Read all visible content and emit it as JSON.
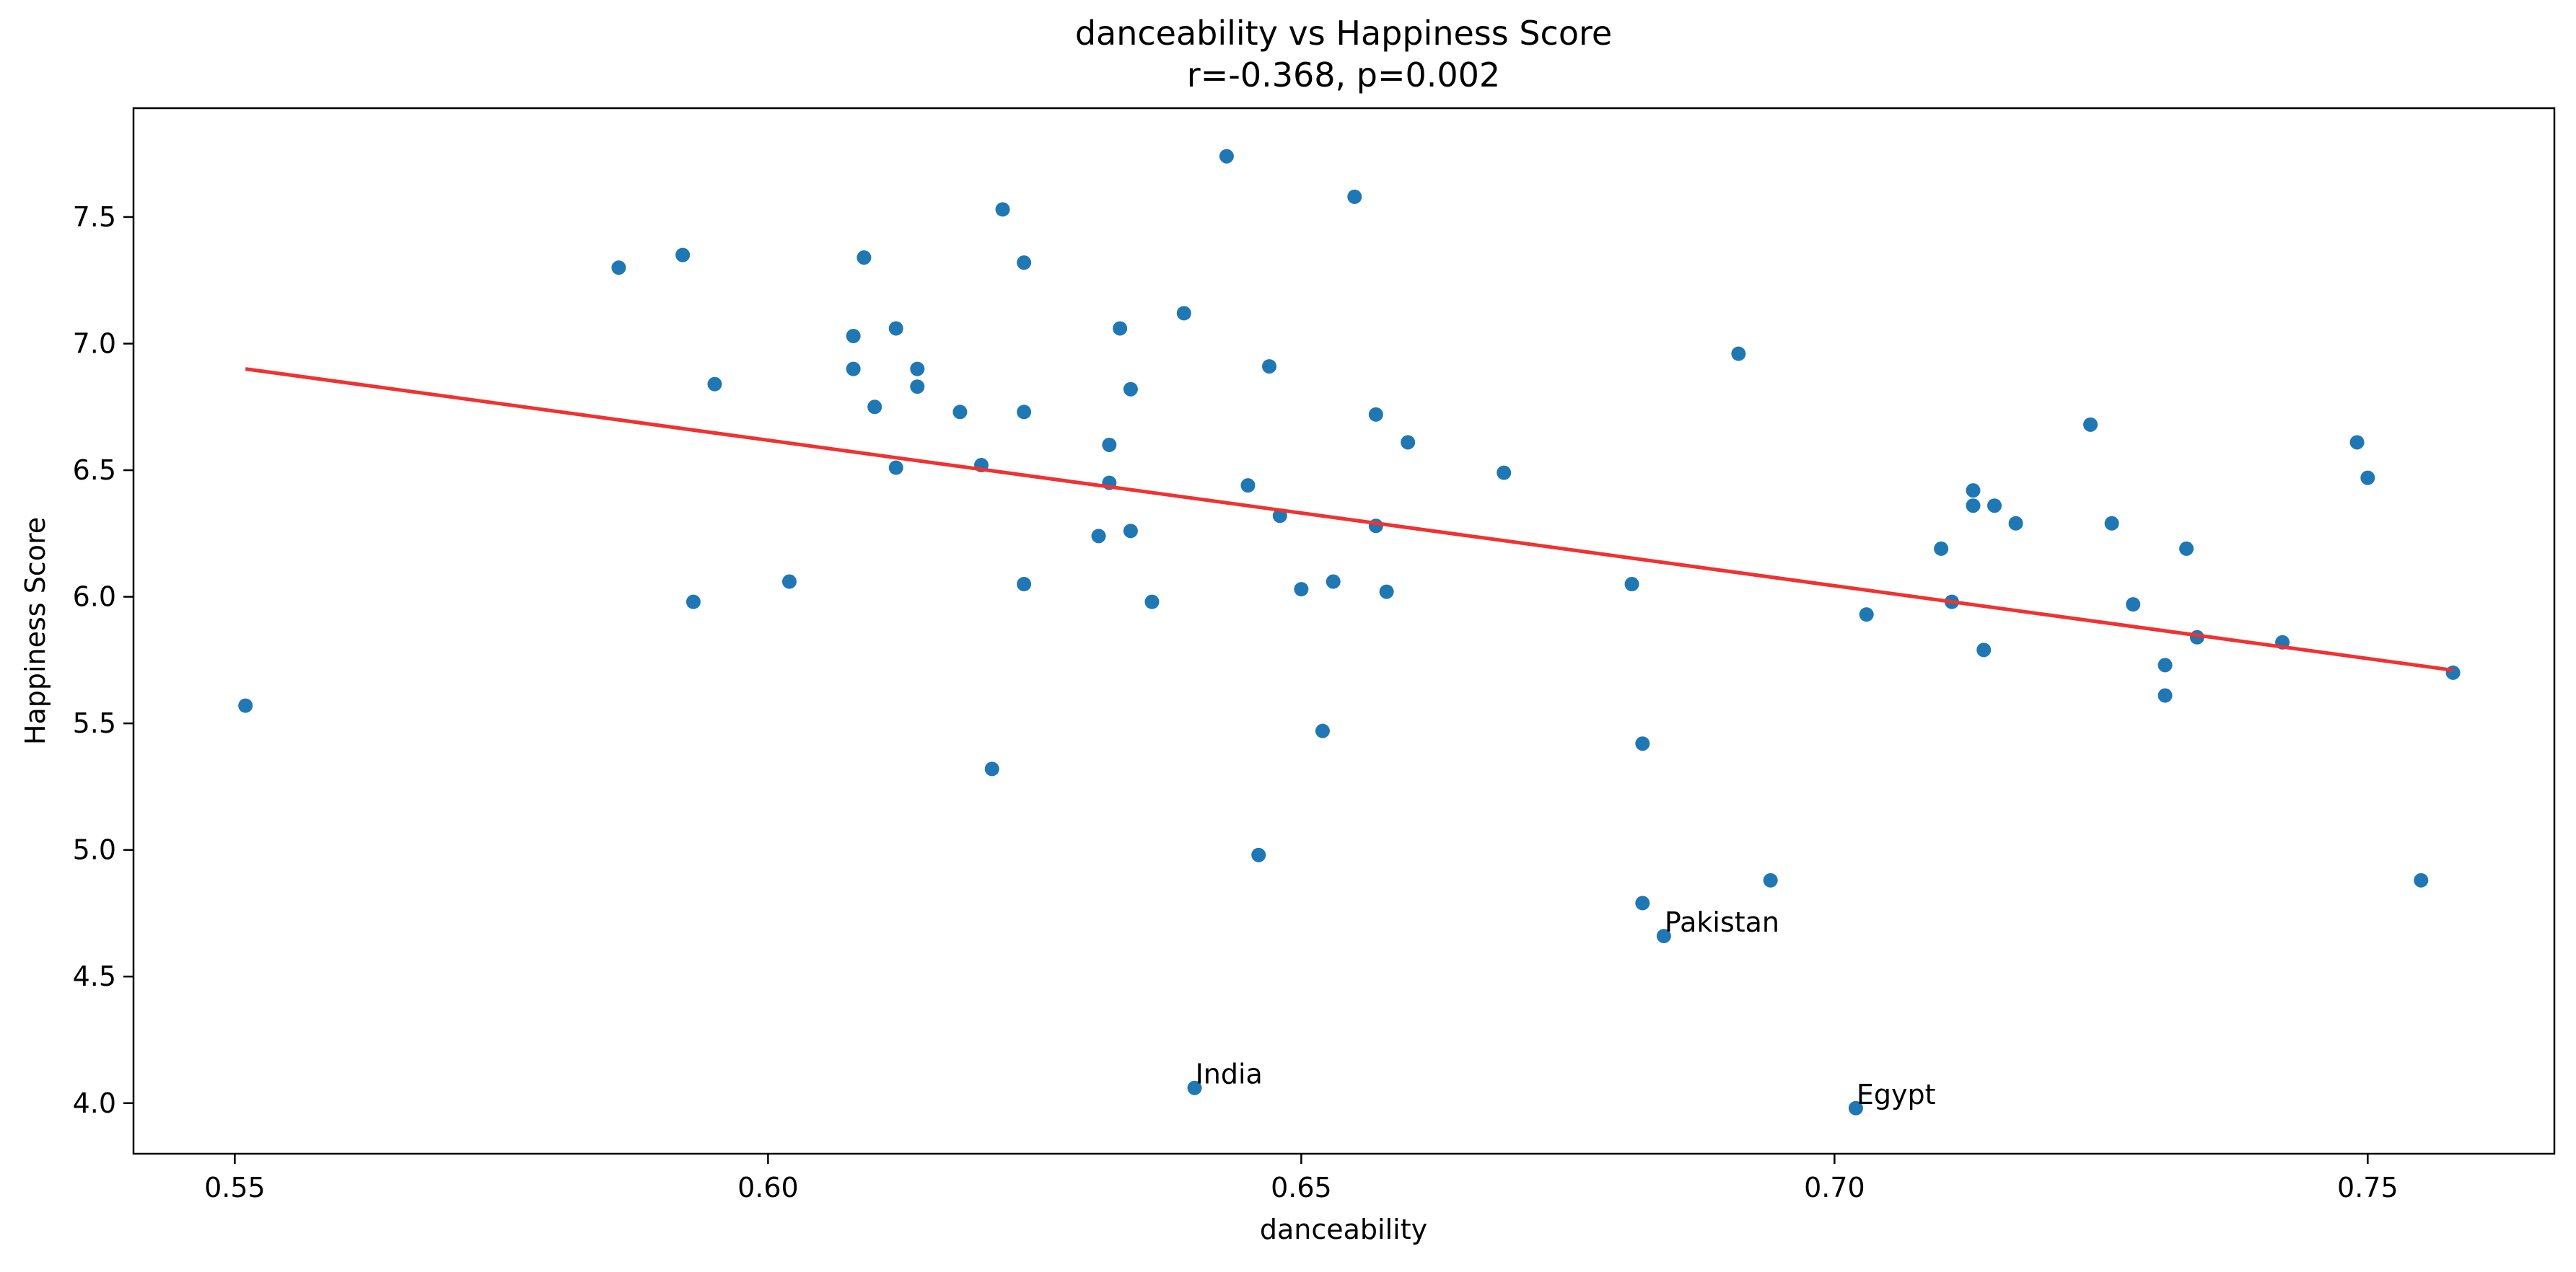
{
  "chart_data": {
    "type": "scatter",
    "title": "danceability vs Happiness Score",
    "subtitle": "r=-0.368, p=0.002",
    "xlabel": "danceability",
    "ylabel": "Happiness Score",
    "xlim": [
      0.5405,
      0.7675
    ],
    "ylim": [
      3.8,
      7.93
    ],
    "xticks": [
      0.55,
      0.6,
      0.65,
      0.7,
      0.75
    ],
    "xtick_labels": [
      "0.55",
      "0.60",
      "0.65",
      "0.70",
      "0.75"
    ],
    "yticks": [
      4.0,
      4.5,
      5.0,
      5.5,
      6.0,
      6.5,
      7.0,
      7.5
    ],
    "ytick_labels": [
      "4.0",
      "4.5",
      "5.0",
      "5.5",
      "6.0",
      "6.5",
      "7.0",
      "7.5"
    ],
    "grid": false,
    "point_color": "#1f77b4",
    "line_color": "#ef3232",
    "points": [
      {
        "x": 0.551,
        "y": 5.57
      },
      {
        "x": 0.586,
        "y": 7.3
      },
      {
        "x": 0.592,
        "y": 7.35
      },
      {
        "x": 0.593,
        "y": 5.98
      },
      {
        "x": 0.595,
        "y": 6.84
      },
      {
        "x": 0.602,
        "y": 6.06
      },
      {
        "x": 0.608,
        "y": 7.03
      },
      {
        "x": 0.608,
        "y": 6.9
      },
      {
        "x": 0.609,
        "y": 7.34
      },
      {
        "x": 0.61,
        "y": 6.75
      },
      {
        "x": 0.612,
        "y": 7.06
      },
      {
        "x": 0.612,
        "y": 6.51
      },
      {
        "x": 0.614,
        "y": 6.83
      },
      {
        "x": 0.614,
        "y": 6.9
      },
      {
        "x": 0.618,
        "y": 6.73
      },
      {
        "x": 0.62,
        "y": 6.52
      },
      {
        "x": 0.621,
        "y": 5.32
      },
      {
        "x": 0.622,
        "y": 7.53
      },
      {
        "x": 0.624,
        "y": 7.32
      },
      {
        "x": 0.624,
        "y": 6.73
      },
      {
        "x": 0.624,
        "y": 6.05
      },
      {
        "x": 0.631,
        "y": 6.24
      },
      {
        "x": 0.632,
        "y": 6.6
      },
      {
        "x": 0.632,
        "y": 6.45
      },
      {
        "x": 0.633,
        "y": 7.06
      },
      {
        "x": 0.634,
        "y": 6.26
      },
      {
        "x": 0.634,
        "y": 6.82
      },
      {
        "x": 0.636,
        "y": 5.98
      },
      {
        "x": 0.639,
        "y": 7.12
      },
      {
        "x": 0.64,
        "y": 4.06,
        "label": "India"
      },
      {
        "x": 0.643,
        "y": 7.74
      },
      {
        "x": 0.645,
        "y": 6.44
      },
      {
        "x": 0.646,
        "y": 4.98
      },
      {
        "x": 0.647,
        "y": 6.91
      },
      {
        "x": 0.648,
        "y": 6.32
      },
      {
        "x": 0.65,
        "y": 6.03
      },
      {
        "x": 0.652,
        "y": 5.47
      },
      {
        "x": 0.653,
        "y": 6.06
      },
      {
        "x": 0.655,
        "y": 7.58
      },
      {
        "x": 0.657,
        "y": 6.72
      },
      {
        "x": 0.657,
        "y": 6.28
      },
      {
        "x": 0.658,
        "y": 6.02
      },
      {
        "x": 0.66,
        "y": 6.61
      },
      {
        "x": 0.669,
        "y": 6.49
      },
      {
        "x": 0.681,
        "y": 6.05
      },
      {
        "x": 0.682,
        "y": 5.42
      },
      {
        "x": 0.682,
        "y": 4.79
      },
      {
        "x": 0.684,
        "y": 4.66,
        "label": "Pakistan"
      },
      {
        "x": 0.691,
        "y": 6.96
      },
      {
        "x": 0.694,
        "y": 4.88
      },
      {
        "x": 0.702,
        "y": 3.98,
        "label": "Egypt"
      },
      {
        "x": 0.703,
        "y": 5.93
      },
      {
        "x": 0.71,
        "y": 6.19
      },
      {
        "x": 0.711,
        "y": 5.98
      },
      {
        "x": 0.713,
        "y": 6.42
      },
      {
        "x": 0.713,
        "y": 6.36
      },
      {
        "x": 0.714,
        "y": 5.79
      },
      {
        "x": 0.715,
        "y": 6.36
      },
      {
        "x": 0.717,
        "y": 6.29
      },
      {
        "x": 0.724,
        "y": 6.68
      },
      {
        "x": 0.726,
        "y": 6.29
      },
      {
        "x": 0.728,
        "y": 5.97
      },
      {
        "x": 0.731,
        "y": 5.73
      },
      {
        "x": 0.731,
        "y": 5.61
      },
      {
        "x": 0.733,
        "y": 6.19
      },
      {
        "x": 0.734,
        "y": 5.84
      },
      {
        "x": 0.742,
        "y": 5.82
      },
      {
        "x": 0.749,
        "y": 6.61
      },
      {
        "x": 0.75,
        "y": 6.47
      },
      {
        "x": 0.755,
        "y": 4.88
      },
      {
        "x": 0.758,
        "y": 5.7
      }
    ],
    "trendline": {
      "x": [
        0.551,
        0.758
      ],
      "y": [
        6.9,
        5.71
      ]
    }
  }
}
